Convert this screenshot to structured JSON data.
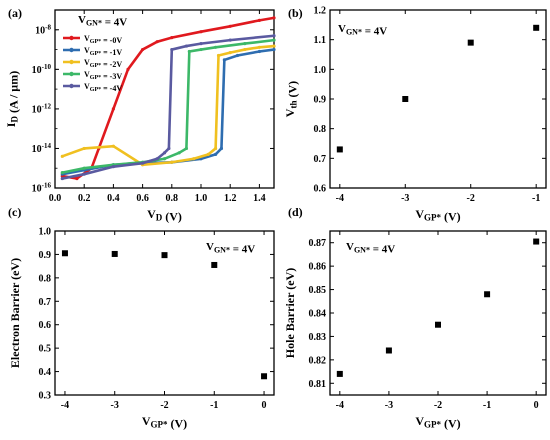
{
  "chart_data": [
    {
      "panel": "(a)",
      "type": "line",
      "xlabel": "V_D (V)",
      "ylabel": "I_D (A / µm)",
      "xlim": [
        0,
        1.5
      ],
      "ylim": [
        1e-16,
        1e-07
      ],
      "yscale": "log",
      "x_ticks": [
        "0.0",
        "0.2",
        "0.4",
        "0.6",
        "0.8",
        "1.0",
        "1.2",
        "1.4"
      ],
      "y_ticks": [
        "10^-16",
        "10^-14",
        "10^-12",
        "10^-10",
        "10^-8"
      ],
      "annotation": "V_GN* = 4V",
      "legend_loc": "upper-left",
      "series": [
        {
          "name": "V_GP* = -0V",
          "color": "#e0191e",
          "marker": "circle",
          "x": [
            0.05,
            0.15,
            0.25,
            0.3,
            0.4,
            0.5,
            0.6,
            0.7,
            0.8,
            1.0,
            1.2,
            1.4,
            1.5
          ],
          "y": [
            4e-16,
            3e-16,
            1e-15,
            1e-14,
            1e-12,
            1e-10,
            1e-09,
            2.5e-09,
            4e-09,
            8e-09,
            1.5e-08,
            3e-08,
            4e-08
          ]
        },
        {
          "name": "V_GP* = -1V",
          "color": "#2e6db0",
          "marker": "circle",
          "x": [
            0.05,
            0.2,
            0.4,
            0.6,
            0.8,
            1.0,
            1.1,
            1.14,
            1.16,
            1.25,
            1.4,
            1.5
          ],
          "y": [
            5e-16,
            8e-16,
            1.5e-15,
            1.8e-15,
            2e-15,
            3e-15,
            5e-15,
            1e-14,
            3e-10,
            5e-10,
            8e-10,
            1e-09
          ]
        },
        {
          "name": "V_GP* = -2V",
          "color": "#f0c020",
          "marker": "circle",
          "x": [
            0.05,
            0.2,
            0.4,
            0.6,
            0.8,
            0.95,
            1.05,
            1.1,
            1.12,
            1.2,
            1.3,
            1.4,
            1.5
          ],
          "y": [
            4e-15,
            1e-14,
            1.3e-14,
            1.5e-15,
            2e-15,
            3e-15,
            5e-15,
            1e-14,
            5e-10,
            7e-10,
            1e-09,
            1.3e-09,
            1.5e-09
          ]
        },
        {
          "name": "V_GP* = -3V",
          "color": "#3cb868",
          "marker": "circle",
          "x": [
            0.05,
            0.2,
            0.4,
            0.6,
            0.75,
            0.85,
            0.9,
            0.92,
            1.0,
            1.1,
            1.3,
            1.5
          ],
          "y": [
            6e-16,
            1e-15,
            1.5e-15,
            2e-15,
            3e-15,
            6e-15,
            1e-14,
            8e-10,
            1e-09,
            1.3e-09,
            2e-09,
            3e-09
          ]
        },
        {
          "name": "V_GP* = -4V",
          "color": "#5a5aa0",
          "marker": "circle",
          "x": [
            0.05,
            0.2,
            0.4,
            0.6,
            0.7,
            0.75,
            0.78,
            0.8,
            0.9,
            1.0,
            1.2,
            1.5
          ],
          "y": [
            3e-16,
            5e-16,
            1.2e-15,
            1.8e-15,
            3e-15,
            6e-15,
            1e-14,
            1e-09,
            1.5e-09,
            2e-09,
            3e-09,
            5e-09
          ]
        }
      ]
    },
    {
      "panel": "(b)",
      "type": "scatter",
      "xlabel": "V_GP* (V)",
      "ylabel": "V_th (V)",
      "xlim": [
        -4.15,
        -0.85
      ],
      "ylim": [
        0.6,
        1.2
      ],
      "x_ticks": [
        -4,
        -3,
        -2,
        -1
      ],
      "y_ticks": [
        "0.6",
        "0.7",
        "0.8",
        "0.9",
        "1.0",
        "1.1",
        "1.2"
      ],
      "annotation": "V_GN* = 4V",
      "x": [
        -4,
        -3,
        -2,
        -1
      ],
      "y": [
        0.73,
        0.9,
        1.09,
        1.14
      ]
    },
    {
      "panel": "(c)",
      "type": "scatter",
      "xlabel": "V_GP* (V)",
      "ylabel": "Electron Barrier (eV)",
      "xlim": [
        -4.2,
        0.2
      ],
      "ylim": [
        0.3,
        1.0
      ],
      "x_ticks": [
        -4,
        -3,
        -2,
        -1,
        0
      ],
      "y_ticks": [
        "0.3",
        "0.4",
        "0.5",
        "0.6",
        "0.7",
        "0.8",
        "0.9",
        "1.0"
      ],
      "annotation": "V_GN* = 4V",
      "x": [
        -4,
        -3,
        -2,
        -1,
        0
      ],
      "y": [
        0.905,
        0.902,
        0.897,
        0.855,
        0.38
      ]
    },
    {
      "panel": "(d)",
      "type": "scatter",
      "xlabel": "V_GP* (V)",
      "ylabel": "Hole Barrier (eV)",
      "xlim": [
        -4.2,
        0.2
      ],
      "ylim": [
        0.805,
        0.875
      ],
      "x_ticks": [
        -4,
        -3,
        -2,
        -1,
        0
      ],
      "y_ticks": [
        "0.81",
        "0.82",
        "0.83",
        "0.84",
        "0.85",
        "0.86",
        "0.87"
      ],
      "annotation": "V_GN* = 4V",
      "x": [
        -4,
        -3,
        -2,
        -1,
        0
      ],
      "y": [
        0.814,
        0.824,
        0.835,
        0.848,
        0.8705
      ]
    }
  ]
}
